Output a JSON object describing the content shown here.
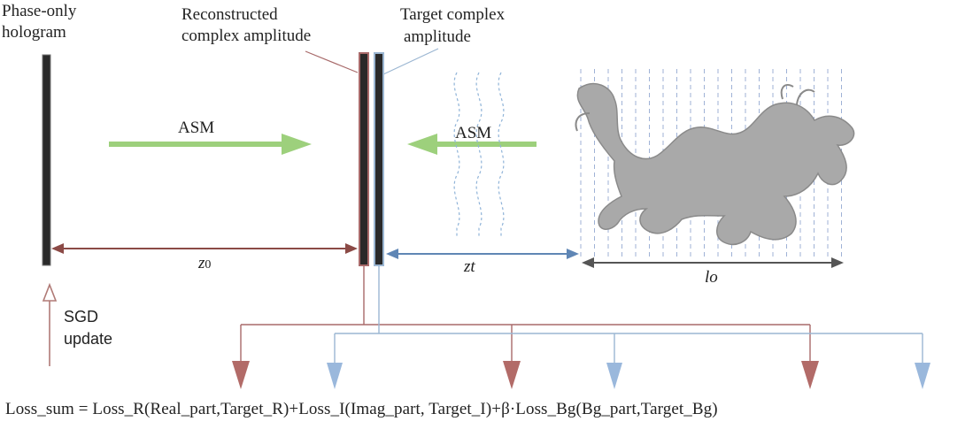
{
  "labels": {
    "hologram_line1": "Phase-only",
    "hologram_line2": "hologram",
    "recon_line1": "Reconstructed",
    "recon_line2": "complex amplitude",
    "target_line1": "Target complex",
    "target_line2": "amplitude",
    "asm_left": "ASM",
    "asm_right": "ASM",
    "z0": "z",
    "z0_sub": "0",
    "zt": "zt",
    "lo": "lo",
    "sgd_line1": "SGD",
    "sgd_line2": "update"
  },
  "equation": "Loss_sum = Loss_R(Real_part,Target_R)+Loss_I(Imag_part, Target_I)+β·Loss_Bg(Bg_part,Target_Bg)",
  "colors": {
    "red_line": "#a86a6a",
    "red_arrow": "#b26b68",
    "blue_line": "#9bb6d2",
    "blue_arrow": "#9ab8dc",
    "green_arrow": "#9dd07c",
    "dark_plate": "#2a2a2a",
    "dragon": "#a9a9a9"
  }
}
